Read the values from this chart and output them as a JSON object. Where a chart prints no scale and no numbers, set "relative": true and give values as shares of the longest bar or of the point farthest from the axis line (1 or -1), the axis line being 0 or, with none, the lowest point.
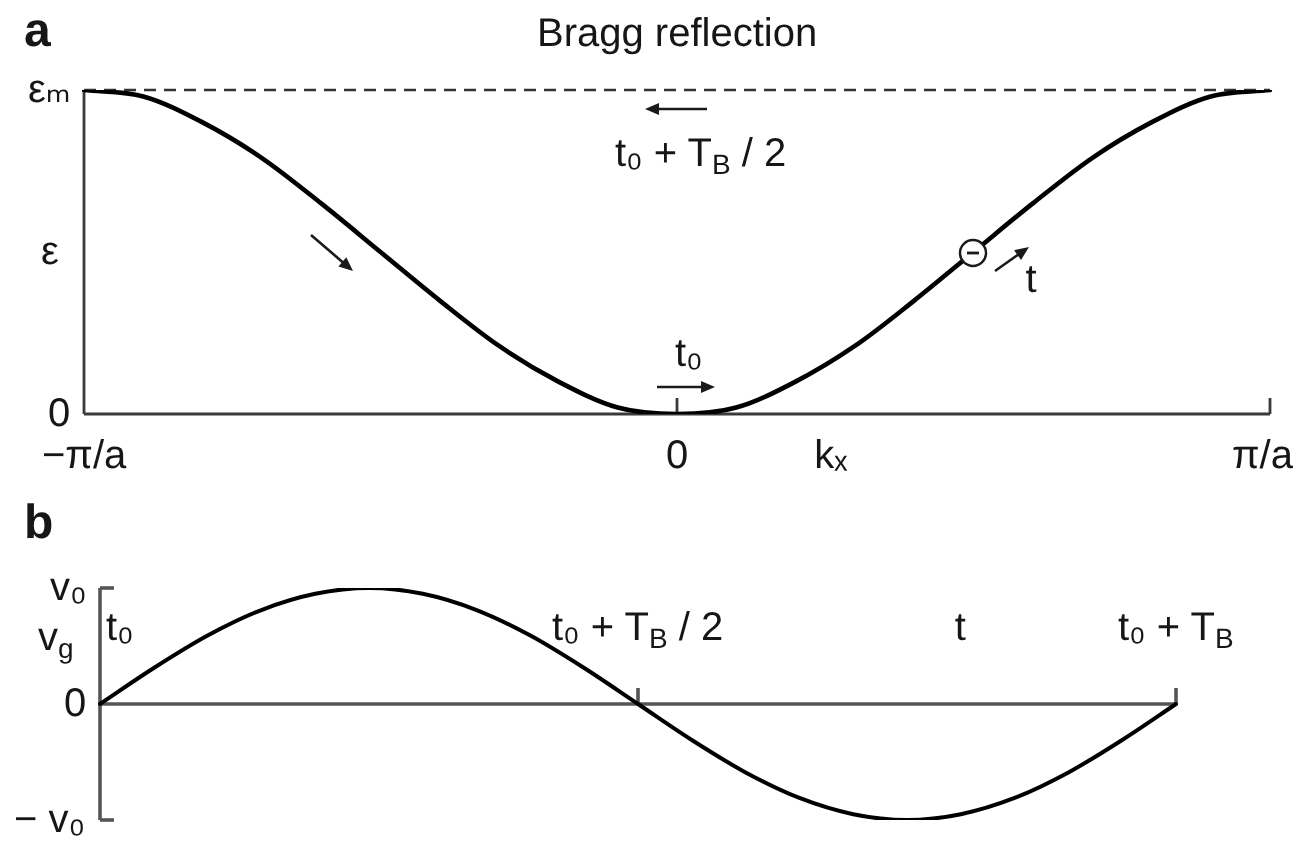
{
  "chart_data": [
    {
      "type": "line",
      "title": "a",
      "xlabel": "kₓ",
      "ylabel": "ε",
      "relative": true,
      "categories": [
        "−π/a",
        null,
        null,
        null,
        null,
        null,
        null,
        null,
        null,
        null,
        "0",
        null,
        null,
        null,
        null,
        null,
        null,
        null,
        null,
        null,
        "π/a"
      ],
      "series": [
        {
          "color": "#000000",
          "values": [
            1,
            0.98,
            0.9,
            0.79,
            0.65,
            0.5,
            0.35,
            0.21,
            0.1,
            0.02,
            0,
            0.02,
            0.1,
            0.21,
            0.35,
            0.5,
            0.65,
            0.79,
            0.9,
            0.98,
            1
          ]
        }
      ],
      "ref_lines": [
        {
          "axis": "y",
          "value": 1,
          "label": "Bragg reflection",
          "line_style": "dashed",
          "color": "#333333"
        }
      ],
      "annotations": [
        "εₘ",
        {
          "text": "t₀ + T$_{B}$ / 2",
          "x": "0",
          "y": 1
        },
        "t",
        {
          "text": "t₀",
          "x": "0",
          "y": 0
        },
        "0"
      ],
      "marker": "none",
      "line_style": "solid"
    },
    {
      "type": "line",
      "title": "b",
      "xlabel": "t",
      "ylabel": "v$_{g}$",
      "relative": true,
      "categories": [
        "t₀",
        null,
        null,
        null,
        null,
        null,
        null,
        null,
        null,
        null,
        "t₀ + T$_{B}$ / 2",
        null,
        null,
        null,
        null,
        null,
        null,
        null,
        null,
        null,
        "t₀ + T$_{B}$"
      ],
      "series": [
        {
          "color": "#000000",
          "values": [
            0,
            0.31,
            0.59,
            0.81,
            0.95,
            1,
            0.95,
            0.81,
            0.59,
            0.31,
            0,
            -0.31,
            -0.59,
            -0.81,
            -0.95,
            -1,
            -0.95,
            -0.81,
            -0.59,
            -0.31,
            0
          ]
        }
      ],
      "annotations": [
        "v₀",
        "0",
        "− v₀"
      ],
      "marker": "none",
      "line_style": "solid"
    }
  ]
}
